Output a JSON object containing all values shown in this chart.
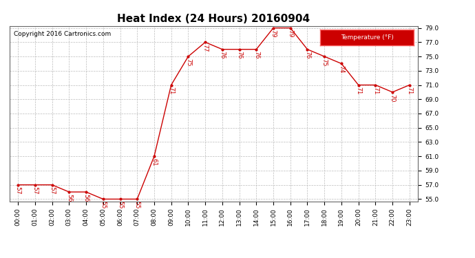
{
  "title": "Heat Index (24 Hours) 20160904",
  "copyright": "Copyright 2016 Cartronics.com",
  "legend_label": "Temperature (°F)",
  "hours": [
    0,
    1,
    2,
    3,
    4,
    5,
    6,
    7,
    8,
    9,
    10,
    11,
    12,
    13,
    14,
    15,
    16,
    17,
    18,
    19,
    20,
    21,
    22,
    23
  ],
  "values": [
    57,
    57,
    57,
    56,
    56,
    55,
    55,
    55,
    61,
    71,
    75,
    77,
    76,
    76,
    76,
    79,
    79,
    76,
    75,
    74,
    71,
    71,
    70,
    71
  ],
  "x_labels": [
    "00:00",
    "01:00",
    "02:00",
    "03:00",
    "04:00",
    "05:00",
    "06:00",
    "07:00",
    "08:00",
    "09:00",
    "10:00",
    "11:00",
    "12:00",
    "13:00",
    "14:00",
    "15:00",
    "16:00",
    "17:00",
    "18:00",
    "19:00",
    "20:00",
    "21:00",
    "22:00",
    "23:00"
  ],
  "ylim": [
    55.0,
    79.0
  ],
  "yticks": [
    55.0,
    57.0,
    59.0,
    61.0,
    63.0,
    65.0,
    67.0,
    69.0,
    71.0,
    73.0,
    75.0,
    77.0,
    79.0
  ],
  "line_color": "#cc0000",
  "marker_color": "#cc0000",
  "bg_color": "#ffffff",
  "grid_color": "#bbbbbb",
  "legend_bg": "#cc0000",
  "legend_text_color": "#ffffff",
  "legend_border_color": "#ff6666",
  "title_fontsize": 11,
  "label_fontsize": 6.5,
  "annot_fontsize": 6.5,
  "copyright_fontsize": 6.5,
  "figwidth": 6.9,
  "figheight": 3.75,
  "dpi": 100
}
